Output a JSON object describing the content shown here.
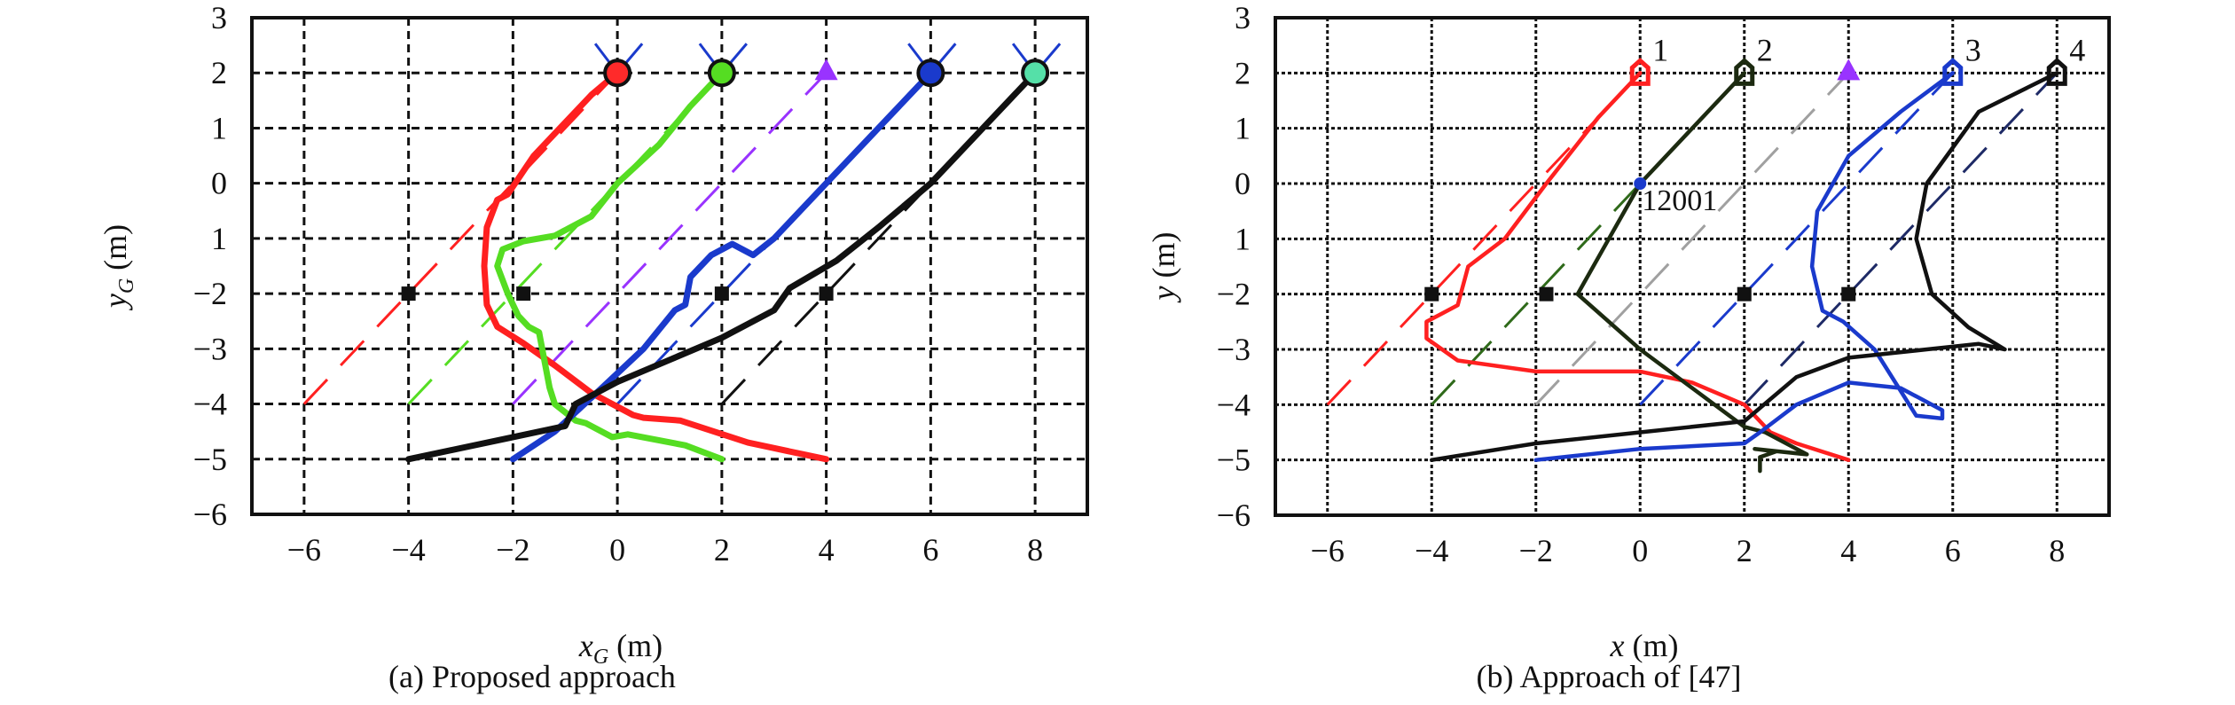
{
  "figure_a": {
    "caption": "(a)  Proposed approach",
    "xlabel_main": "x",
    "xlabel_sub": "G",
    "xlabel_unit": " (m)",
    "ylabel_main": "y",
    "ylabel_sub": "G",
    "ylabel_unit": " (m)"
  },
  "figure_b": {
    "caption": "(b) Approach of [47]",
    "xlabel_main": "x",
    "xlabel_unit": " (m)",
    "ylabel_main": "y",
    "ylabel_unit": " (m)",
    "point_label": "12001",
    "target_labels": [
      "1",
      "2",
      "3",
      "4"
    ]
  },
  "chart_data": [
    {
      "type": "line",
      "title": "(a)  Proposed approach",
      "xlabel": "x_G (m)",
      "ylabel": "y_G (m)",
      "xlim": [
        -7,
        9
      ],
      "ylim": [
        -6,
        3
      ],
      "x_ticks": [
        "-6",
        "-4",
        "-2",
        "0",
        "2",
        "4",
        "6",
        "8"
      ],
      "y_ticks": [
        "3",
        "2",
        "1",
        "0",
        "1",
        "-2",
        "-3",
        "-4",
        "-5",
        "-6"
      ],
      "grid": true,
      "grid_style": "dashed",
      "obstacles": [
        [
          -4,
          -2
        ],
        [
          -1.8,
          -2
        ],
        [
          2,
          -2
        ],
        [
          4,
          -2
        ]
      ],
      "targets": [
        {
          "x": 0,
          "y": 2,
          "marker": "circle",
          "color": "#ff2a2a"
        },
        {
          "x": 2,
          "y": 2,
          "marker": "circle",
          "color": "#55dd22"
        },
        {
          "x": 4,
          "y": 2,
          "marker": "triangle",
          "color": "#9933ff"
        },
        {
          "x": 6,
          "y": 2,
          "marker": "circle",
          "color": "#1a3acc"
        },
        {
          "x": 8,
          "y": 2,
          "marker": "circle",
          "color": "#55e0a8"
        }
      ],
      "series": [
        {
          "name": "agent-red",
          "color": "#ff2020",
          "style": "solid",
          "points": [
            [
              4,
              -5
            ],
            [
              2.5,
              -4.7
            ],
            [
              1.2,
              -4.3
            ],
            [
              0.5,
              -4.25
            ],
            [
              0.3,
              -4.2
            ],
            [
              -0.5,
              -3.8
            ],
            [
              -1.2,
              -3.3
            ],
            [
              -1.8,
              -2.9
            ],
            [
              -2.3,
              -2.6
            ],
            [
              -2.5,
              -2.2
            ],
            [
              -2.55,
              -1.5
            ],
            [
              -2.5,
              -0.8
            ],
            [
              -2.3,
              -0.3
            ],
            [
              -2.1,
              -0.2
            ],
            [
              -1.6,
              0.5
            ],
            [
              -1,
              1.1
            ],
            [
              -0.5,
              1.6
            ],
            [
              0,
              2
            ]
          ]
        },
        {
          "name": "agent-green",
          "color": "#55dd22",
          "style": "solid",
          "points": [
            [
              2,
              -5
            ],
            [
              1.3,
              -4.75
            ],
            [
              0.2,
              -4.55
            ],
            [
              -0.1,
              -4.6
            ],
            [
              -0.6,
              -4.35
            ],
            [
              -0.8,
              -4.3
            ],
            [
              -1.2,
              -4.0
            ],
            [
              -1.3,
              -3.7
            ],
            [
              -1.4,
              -3.2
            ],
            [
              -1.5,
              -2.7
            ],
            [
              -1.7,
              -2.6
            ],
            [
              -1.9,
              -2.4
            ],
            [
              -2.1,
              -2
            ],
            [
              -2.3,
              -1.5
            ],
            [
              -2.2,
              -1.2
            ],
            [
              -1.8,
              -1.05
            ],
            [
              -1.2,
              -0.95
            ],
            [
              -0.5,
              -0.6
            ],
            [
              0,
              0
            ],
            [
              0.8,
              0.7
            ],
            [
              1.4,
              1.4
            ],
            [
              2,
              2
            ]
          ]
        },
        {
          "name": "agent-blue",
          "color": "#1a3acc",
          "style": "solid",
          "points": [
            [
              -2,
              -5
            ],
            [
              -1.2,
              -4.5
            ],
            [
              -0.4,
              -3.8
            ],
            [
              0.5,
              -3.0
            ],
            [
              1.1,
              -2.3
            ],
            [
              1.3,
              -2.2
            ],
            [
              1.4,
              -1.7
            ],
            [
              1.8,
              -1.3
            ],
            [
              2.2,
              -1.1
            ],
            [
              2.6,
              -1.3
            ],
            [
              3,
              -1
            ],
            [
              4,
              0
            ],
            [
              5,
              1
            ],
            [
              6,
              2
            ]
          ]
        },
        {
          "name": "agent-black",
          "color": "#111111",
          "style": "solid",
          "points": [
            [
              -4,
              -5
            ],
            [
              -2,
              -4.6
            ],
            [
              -1,
              -4.4
            ],
            [
              -0.8,
              -4.0
            ],
            [
              -0.6,
              -3.9
            ],
            [
              0,
              -3.6
            ],
            [
              1,
              -3.2
            ],
            [
              2,
              -2.8
            ],
            [
              3,
              -2.3
            ],
            [
              3.3,
              -1.9
            ],
            [
              4.2,
              -1.4
            ],
            [
              5,
              -0.8
            ],
            [
              6,
              0
            ],
            [
              7,
              1
            ],
            [
              8,
              2
            ]
          ]
        }
      ],
      "reference_dashed_lines": [
        {
          "color": "#ff2020",
          "from": [
            -6,
            -4
          ],
          "to": [
            0,
            2
          ]
        },
        {
          "color": "#55dd22",
          "from": [
            -4,
            -4
          ],
          "to": [
            2,
            2
          ]
        },
        {
          "color": "#9933ff",
          "from": [
            -2,
            -4
          ],
          "to": [
            4,
            2
          ]
        },
        {
          "color": "#1a3acc",
          "from": [
            0,
            -4
          ],
          "to": [
            6,
            2
          ]
        },
        {
          "color": "#111111",
          "from": [
            2,
            -4
          ],
          "to": [
            8,
            2
          ]
        }
      ]
    },
    {
      "type": "line",
      "title": "(b) Approach of [47]",
      "xlabel": "x (m)",
      "ylabel": "y (m)",
      "xlim": [
        -7,
        9
      ],
      "ylim": [
        -6,
        3
      ],
      "x_ticks": [
        "-6",
        "-4",
        "-2",
        "0",
        "2",
        "4",
        "6",
        "8"
      ],
      "y_ticks": [
        "3",
        "2",
        "1",
        "0",
        "1",
        "-2",
        "-3",
        "-4",
        "-5",
        "-6"
      ],
      "grid": true,
      "grid_style": "dotted",
      "obstacles": [
        [
          -4,
          -2
        ],
        [
          -1.8,
          -2
        ],
        [
          2,
          -2
        ],
        [
          4,
          -2
        ]
      ],
      "annotations": [
        {
          "text": "12001",
          "x": 0,
          "y": 0,
          "marker": "dot",
          "color": "#1a3acc"
        },
        {
          "text": "1",
          "x": 0,
          "y": 2
        },
        {
          "text": "2",
          "x": 2,
          "y": 2
        },
        {
          "text": "3",
          "x": 6,
          "y": 2
        },
        {
          "text": "4",
          "x": 8,
          "y": 2
        }
      ],
      "targets": [
        {
          "x": 0,
          "y": 2,
          "marker": "house",
          "color": "#ff2020"
        },
        {
          "x": 2,
          "y": 2,
          "marker": "house",
          "color": "#1c2a10"
        },
        {
          "x": 4,
          "y": 2,
          "marker": "triangle",
          "color": "#9933ff"
        },
        {
          "x": 6,
          "y": 2,
          "marker": "house",
          "color": "#1a3acc"
        },
        {
          "x": 8,
          "y": 2,
          "marker": "house",
          "color": "#111111"
        }
      ],
      "series": [
        {
          "name": "agent-1-red",
          "color": "#ff2020",
          "style": "solid",
          "points": [
            [
              4,
              -5
            ],
            [
              3,
              -4.7
            ],
            [
              2.5,
              -4.5
            ],
            [
              2,
              -4
            ],
            [
              1,
              -3.6
            ],
            [
              0,
              -3.4
            ],
            [
              -2,
              -3.4
            ],
            [
              -3.5,
              -3.2
            ],
            [
              -4.1,
              -2.8
            ],
            [
              -4.1,
              -2.5
            ],
            [
              -3.8,
              -2.35
            ],
            [
              -3.5,
              -2.2
            ],
            [
              -3.3,
              -1.5
            ],
            [
              -2.6,
              -1
            ],
            [
              -1.8,
              0
            ],
            [
              -0.8,
              1.2
            ],
            [
              0,
              2
            ]
          ]
        },
        {
          "name": "agent-2-darkgreen",
          "color": "#1c2a10",
          "style": "solid",
          "points": [
            [
              2.3,
              -5.2
            ],
            [
              2.3,
              -4.95
            ],
            [
              2.6,
              -4.85
            ],
            [
              2.2,
              -4.8
            ],
            [
              3.2,
              -4.9
            ],
            [
              2.4,
              -4.5
            ],
            [
              2,
              -4.4
            ],
            [
              0,
              -3
            ],
            [
              -1.2,
              -2
            ],
            [
              -0.6,
              -1
            ],
            [
              0,
              0
            ],
            [
              1,
              1
            ],
            [
              2,
              2
            ]
          ]
        },
        {
          "name": "agent-3-blue",
          "color": "#1a3acc",
          "style": "solid",
          "points": [
            [
              -2,
              -5
            ],
            [
              0,
              -4.8
            ],
            [
              2,
              -4.7
            ],
            [
              2.3,
              -4.5
            ],
            [
              3,
              -4
            ],
            [
              4,
              -3.6
            ],
            [
              5,
              -3.7
            ],
            [
              5.8,
              -4.1
            ],
            [
              5.8,
              -4.25
            ],
            [
              5.3,
              -4.2
            ],
            [
              4.5,
              -3
            ],
            [
              3.9,
              -2.5
            ],
            [
              3.5,
              -2.3
            ],
            [
              3.3,
              -1.5
            ],
            [
              3.4,
              -0.5
            ],
            [
              4,
              0.5
            ],
            [
              5,
              1.3
            ],
            [
              6,
              2
            ]
          ]
        },
        {
          "name": "agent-4-black",
          "color": "#111111",
          "style": "solid",
          "points": [
            [
              -4,
              -5
            ],
            [
              -2,
              -4.7
            ],
            [
              0,
              -4.5
            ],
            [
              2,
              -4.3
            ],
            [
              3,
              -3.5
            ],
            [
              4,
              -3.15
            ],
            [
              5.5,
              -3
            ],
            [
              6.5,
              -2.9
            ],
            [
              7.0,
              -3.0
            ],
            [
              6.3,
              -2.6
            ],
            [
              5.6,
              -2
            ],
            [
              5.3,
              -1
            ],
            [
              5.5,
              0
            ],
            [
              6.5,
              1.3
            ],
            [
              8,
              2
            ]
          ]
        }
      ],
      "reference_dashed_lines": [
        {
          "color": "#ff2020",
          "from": [
            -6,
            -4
          ],
          "to": [
            0,
            2
          ]
        },
        {
          "color": "#2f6a1a",
          "from": [
            -4,
            -4
          ],
          "to": [
            2,
            2
          ]
        },
        {
          "color": "#a0a0a0",
          "from": [
            -2,
            -4
          ],
          "to": [
            4,
            2
          ]
        },
        {
          "color": "#1a3acc",
          "from": [
            0,
            -4
          ],
          "to": [
            6,
            2
          ]
        },
        {
          "color": "#1e2a66",
          "from": [
            2,
            -4
          ],
          "to": [
            8,
            2
          ]
        }
      ]
    }
  ]
}
